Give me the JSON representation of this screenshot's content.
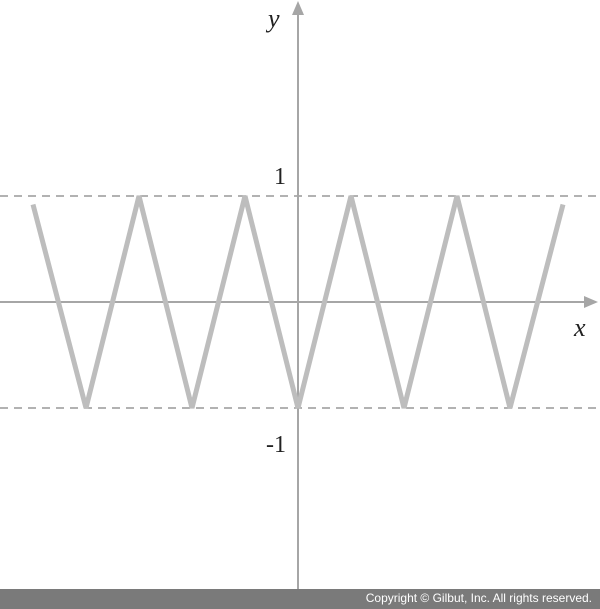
{
  "chart_data": {
    "type": "line",
    "title": "",
    "xlabel": "x",
    "ylabel": "y",
    "ylim": [
      -1.95,
      2.8
    ],
    "xlim": [
      -2.8,
      2.8
    ],
    "grid": false,
    "legend": "none",
    "y_ticks": [
      {
        "value": 1,
        "label": "1"
      },
      {
        "value": -1,
        "label": "-1"
      }
    ],
    "dashed_guides": [
      1,
      -1
    ],
    "series": [
      {
        "color": "#bdbdbd",
        "x": [
          -2.5,
          -2.0,
          -1.5,
          -1.0,
          -0.5,
          0.0,
          0.5,
          1.0,
          1.5,
          2.0,
          2.5
        ],
        "y": [
          0.92,
          -1,
          1,
          -1,
          1,
          -1,
          1,
          -1,
          1,
          -1,
          0.92
        ]
      }
    ]
  },
  "footer": {
    "copyright": "Copyright © Gilbut, Inc. All rights reserved."
  }
}
